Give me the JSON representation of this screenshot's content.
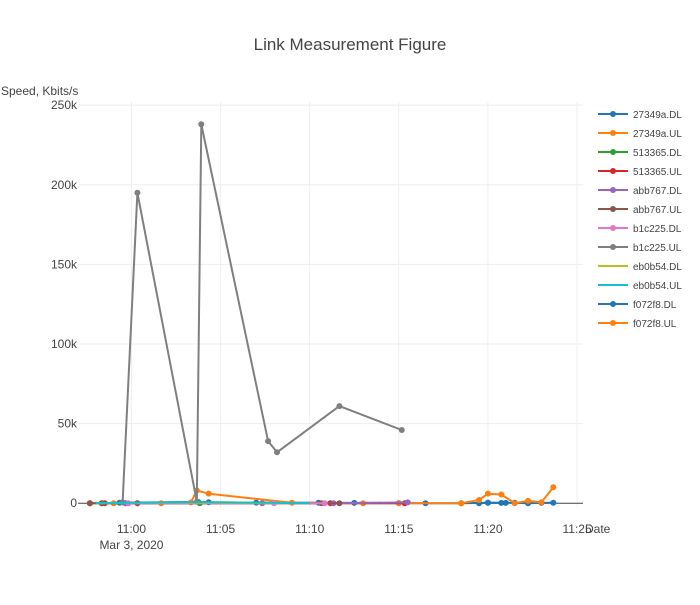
{
  "chart_data": {
    "type": "line",
    "title": "Link Measurement Figure",
    "xlabel": "Date",
    "ylabel": "Speed, Kbits/s",
    "x_ticks": [
      "11:00",
      "11:05",
      "11:10",
      "11:15",
      "11:20",
      "11:25"
    ],
    "x_date_label": "Mar 3, 2020",
    "x_date_under": "11:00",
    "xlim": [
      "10:57:00",
      "11:25:20"
    ],
    "y_ticks": [
      {
        "value": 0,
        "label": "0"
      },
      {
        "value": 50000,
        "label": "50k"
      },
      {
        "value": 100000,
        "label": "100k"
      },
      {
        "value": 150000,
        "label": "150k"
      },
      {
        "value": 200000,
        "label": "200k"
      },
      {
        "value": 250000,
        "label": "250k"
      }
    ],
    "ylim": [
      -3000,
      252000
    ],
    "grid": true,
    "legend_position": "right",
    "series": [
      {
        "name": "27349a.DL",
        "color": "#1f77b4",
        "markers": true,
        "x": [
          "10:57:40",
          "10:59:20",
          "11:03:45",
          "11:04:20",
          "11:07:00",
          "11:10:30",
          "11:12:30",
          "11:15:00",
          "11:16:30",
          "11:18:30",
          "11:20:00",
          "11:21:00"
        ],
        "y": [
          0,
          300,
          800,
          600,
          400,
          300,
          200,
          100,
          0,
          0,
          300,
          200
        ]
      },
      {
        "name": "27349a.UL",
        "color": "#ff7f0e",
        "markers": true,
        "x": [
          "10:57:40",
          "10:59:00",
          "11:01:40",
          "11:03:20",
          "11:03:40",
          "11:04:20",
          "11:09:00",
          "11:13:00",
          "11:15:00",
          "11:18:30"
        ],
        "y": [
          0,
          0,
          0,
          500,
          8000,
          6000,
          300,
          0,
          0,
          0
        ]
      },
      {
        "name": "513365.DL",
        "color": "#2ca02c",
        "markers": true,
        "x": [
          "10:58:20",
          "10:59:40",
          "11:03:50"
        ],
        "y": [
          0,
          0,
          0
        ]
      },
      {
        "name": "513365.UL",
        "color": "#d62728",
        "markers": true,
        "x": [
          "10:58:30",
          "11:00:20",
          "11:11:10",
          "11:15:20"
        ],
        "y": [
          0,
          0,
          0,
          0
        ]
      },
      {
        "name": "abb767.DL",
        "color": "#9467bd",
        "markers": true,
        "x": [
          "10:59:40",
          "11:07:20",
          "11:11:20",
          "11:15:30"
        ],
        "y": [
          0,
          0,
          0,
          500
        ]
      },
      {
        "name": "abb767.UL",
        "color": "#8c564b",
        "markers": true,
        "x": [
          "10:57:40",
          "10:58:20",
          "11:00:20",
          "11:10:40",
          "11:11:40"
        ],
        "y": [
          0,
          0,
          0,
          0,
          0
        ]
      },
      {
        "name": "b1c225.DL",
        "color": "#e377c2",
        "markers": true,
        "x": [
          "10:59:50",
          "11:08:00",
          "11:10:50"
        ],
        "y": [
          0,
          0,
          0
        ]
      },
      {
        "name": "b1c225.UL",
        "color": "#7f7f7f",
        "markers": true,
        "x": [
          "10:59:30",
          "11:00:20",
          "11:03:40",
          "11:03:55",
          "11:07:40",
          "11:08:10",
          "11:11:40",
          "11:15:10"
        ],
        "y": [
          500,
          195000,
          1000,
          238000,
          39000,
          32000,
          61000,
          46000
        ]
      },
      {
        "name": "eb0b54.DL",
        "color": "#bcbd22",
        "markers": false,
        "x": [
          "10:58:00",
          "11:03:10",
          "11:09:00"
        ],
        "y": [
          0,
          400,
          0
        ]
      },
      {
        "name": "eb0b54.UL",
        "color": "#17becf",
        "markers": false,
        "x": [
          "10:58:00",
          "11:03:40",
          "11:10:00"
        ],
        "y": [
          0,
          700,
          0
        ]
      },
      {
        "name": "f072f8.DL",
        "color": "#1f77b4",
        "markers": true,
        "x": [
          "11:19:30",
          "11:20:00",
          "11:20:45",
          "11:21:30",
          "11:22:15",
          "11:23:00",
          "11:23:40"
        ],
        "y": [
          0,
          300,
          200,
          300,
          0,
          200,
          300
        ]
      },
      {
        "name": "f072f8.UL",
        "color": "#ff7f0e",
        "markers": true,
        "x": [
          "11:18:30",
          "11:19:30",
          "11:20:00",
          "11:20:45",
          "11:21:30",
          "11:22:15",
          "11:23:00",
          "11:23:40"
        ],
        "y": [
          0,
          2000,
          6000,
          5500,
          0,
          1500,
          500,
          10000
        ]
      }
    ]
  }
}
